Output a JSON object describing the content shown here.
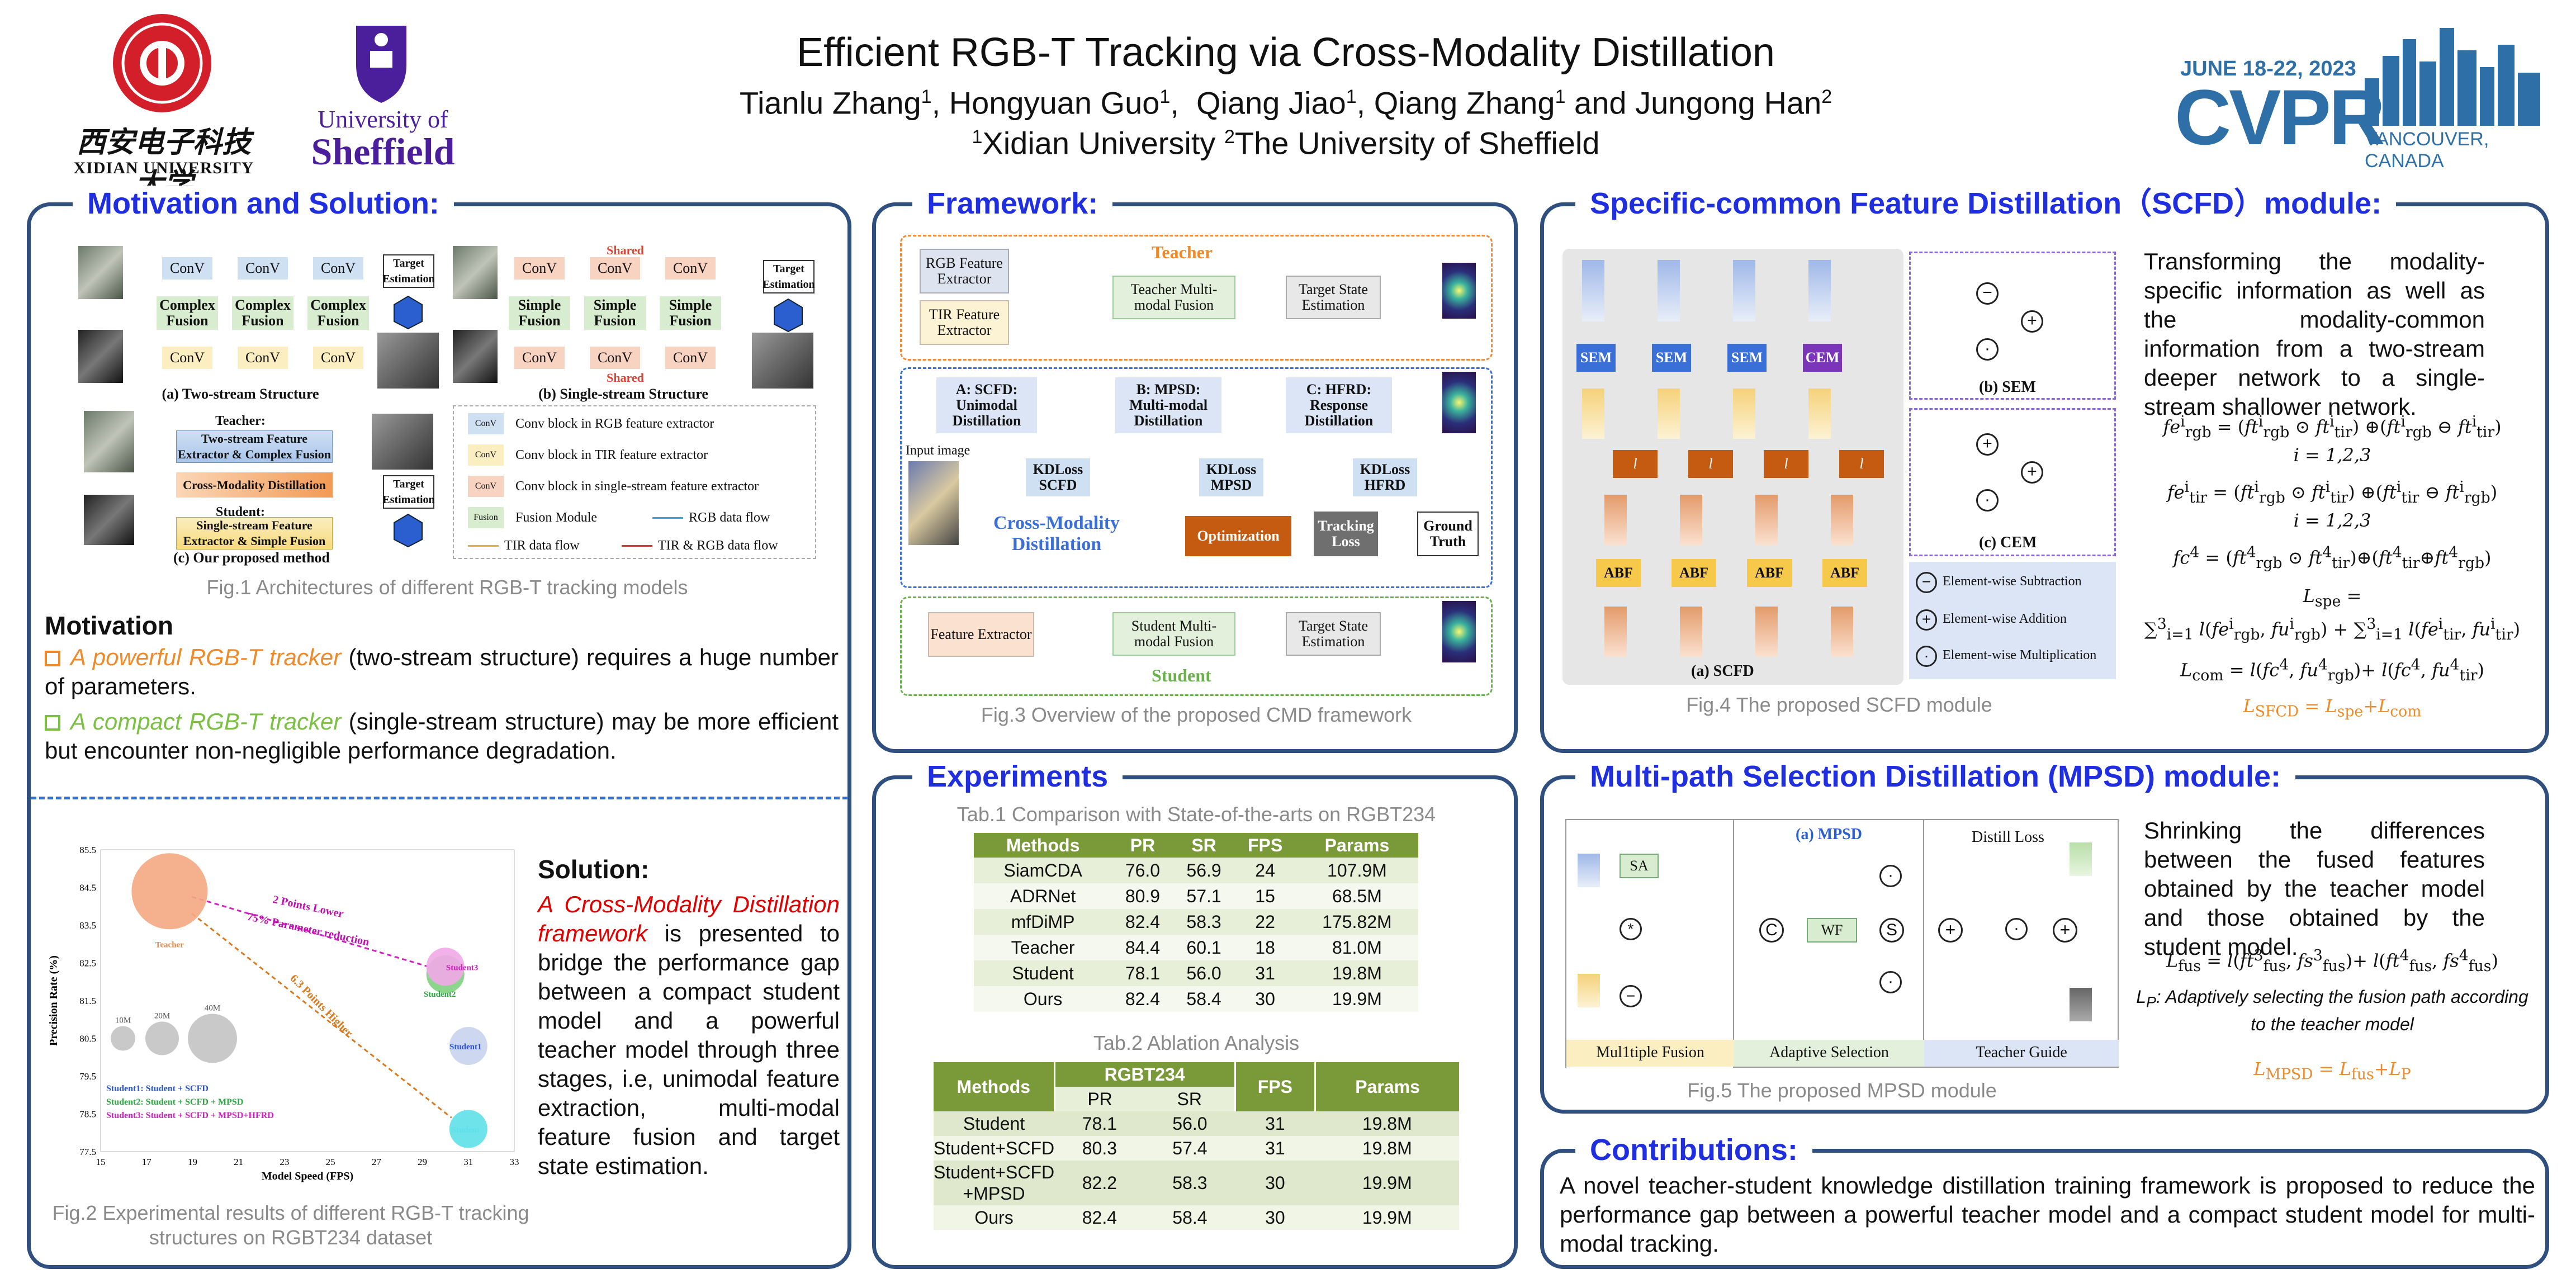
{
  "header": {
    "title": "Efficient RGB-T Tracking via Cross-Modality Distillation",
    "authors_prefix": "Tianlu Zhang",
    "author2": "Hongyuan Guo",
    "author3": "Qiang Jiao",
    "author4": "Qiang Zhang",
    "author5": "Jungong Han",
    "sup1": "1",
    "sup2": "2",
    "and": " and ",
    "aff1": "Xidian University ",
    "aff2": "The University of Sheffield",
    "xidian_cn": "西安电子科技大学",
    "xidian_en": "XIDIAN UNIVERSITY",
    "sheffield1": "University of",
    "sheffield2": "Sheffield",
    "cvpr_date": "JUNE 18-22, 2023",
    "cvpr": "CVPR",
    "cvpr_loc": "VANCOUVER, CANADA"
  },
  "motivation": {
    "title": "Motivation and Solution:",
    "fig1_a": "(a) Two-stream Structure",
    "fig1_b": "(b) Single-stream Structure",
    "fig1_c": "(c) Our proposed method",
    "conv": "ConV",
    "cfusion": "Complex Fusion",
    "sfusion": "Simple Fusion",
    "shared": "Shared",
    "target": "Target Estimation",
    "teacher_lbl": "Teacher:",
    "teacher_box": "Two-stream Feature Extractor & Complex Fusion",
    "cmd_box": "Cross-Modality Distillation",
    "student_lbl": "Student:",
    "student_box": "Single-stream Feature Extractor & Simple Fusion",
    "legend": [
      "Conv block in RGB feature extractor",
      "Conv block in TIR feature extractor",
      "Conv block in single-stream feature extractor",
      "Fusion Module",
      "RGB data flow",
      "TIR data flow",
      "TIR & RGB data flow"
    ],
    "fusion_chip": "Fusion",
    "fig1_caption": "Fig.1 Architectures of different RGB-T tracking models",
    "motivation_head": "Motivation",
    "bullet1_hl": "A powerful RGB-T tracker",
    "bullet1_rest": " (two-stream structure) requires a huge number of parameters.",
    "bullet2_hl": "A compact RGB-T tracker",
    "bullet2_rest": " (single-stream structure) may be more efficient but encounter non-negligible performance degradation.",
    "solution_head": "Solution:",
    "solution_hl": "A Cross-Modality Distillation framework",
    "solution_rest": " is presented to bridge the performance gap between a compact student model and a powerful teacher model through three stages, i.e, unimodal feature extraction, multi-modal feature fusion and target state estimation.",
    "fig2_caption": "Fig.2 Experimental results of different RGB-T tracking structures on RGBT234 dataset"
  },
  "chart_data": {
    "type": "scatter",
    "xlabel": "Model Speed (FPS)",
    "ylabel": "Precision Rate (%)",
    "xlim": [
      15,
      33
    ],
    "ylim": [
      77.5,
      85.5
    ],
    "xticks": [
      15,
      17,
      19,
      21,
      23,
      25,
      27,
      29,
      31,
      33
    ],
    "yticks": [
      77.5,
      78.5,
      79.5,
      80.5,
      81.5,
      82.5,
      83.5,
      84.5,
      85.5
    ],
    "points": [
      {
        "name": "Teacher",
        "x": 18,
        "y": 84.4,
        "params": 81.0,
        "color": "#f4a882"
      },
      {
        "name": "Student",
        "x": 31,
        "y": 78.1,
        "params": 19.8,
        "color": "#5ee0e8"
      },
      {
        "name": "Student1",
        "x": 31,
        "y": 80.3,
        "params": 19.8,
        "color": "#c8d4ee"
      },
      {
        "name": "Student2",
        "x": 30,
        "y": 82.2,
        "params": 19.9,
        "color": "#7fd27f"
      },
      {
        "name": "Student3",
        "x": 30,
        "y": 82.4,
        "params": 19.9,
        "color": "#f2a8e8"
      }
    ],
    "size_legend": [
      "10M",
      "20M",
      "40M"
    ],
    "legend": [
      {
        "text": "Student1: Student + SCFD",
        "color": "#2a55d0"
      },
      {
        "text": "Student2: Student + SCFD + MPSD",
        "color": "#2aa840"
      },
      {
        "text": "Student3: Student + SCFD + MPSD+HFRD",
        "color": "#d020c0"
      }
    ],
    "annotations": [
      "2 Points Lower",
      "75% Parameter reduction",
      "6.3 Points Higher"
    ]
  },
  "framework": {
    "title": "Framework:",
    "teacher": "Teacher",
    "student": "Student",
    "rgb_fe": "RGB Feature Extractor",
    "tir_fe": "TIR Feature Extractor",
    "t_fusion": "Teacher Multi-modal Fusion",
    "t_est": "Target State Estimation",
    "a": "A: SCFD: Unimodal Distillation",
    "b": "B: MPSD: Multi-modal Distillation",
    "c": "C: HFRD: Response Distillation",
    "kd_scfd": "KDLoss SCFD",
    "kd_mpsd": "KDLoss MPSD",
    "kd_hfrd": "KDLoss HFRD",
    "cmd": "Cross-Modality Distillation",
    "opt": "Optimization",
    "track": "Tracking Loss",
    "gt": "Ground Truth",
    "input": "Input image",
    "fe": "Feature Extractor",
    "s_fusion": "Student Multi-modal Fusion",
    "s_est": "Target State Estimation",
    "caption": "Fig.3 Overview of the proposed CMD framework"
  },
  "experiments": {
    "title": "Experiments",
    "tab1_caption": "Tab.1 Comparison with State-of-the-arts on RGBT234",
    "tab1_header": [
      "Methods",
      "PR",
      "SR",
      "FPS",
      "Params"
    ],
    "tab1_rows": [
      [
        "SiamCDA",
        "76.0",
        "56.9",
        "24",
        "107.9M"
      ],
      [
        "ADRNet",
        "80.9",
        "57.1",
        "15",
        "68.5M"
      ],
      [
        "mfDiMP",
        "82.4",
        "58.3",
        "22",
        "175.82M"
      ],
      [
        "Teacher",
        "84.4",
        "60.1",
        "18",
        "81.0M"
      ],
      [
        "Student",
        "78.1",
        "56.0",
        "31",
        "19.8M"
      ],
      [
        "Ours",
        "82.4",
        "58.4",
        "30",
        "19.9M"
      ]
    ],
    "tab2_caption": "Tab.2 Ablation Analysis",
    "tab2_h_methods": "Methods",
    "tab2_h_group": "RGBT234",
    "tab2_h_pr": "PR",
    "tab2_h_sr": "SR",
    "tab2_h_fps": "FPS",
    "tab2_h_params": "Params",
    "tab2_rows": [
      [
        "Student",
        "78.1",
        "56.0",
        "31",
        "19.8M"
      ],
      [
        "Student+SCFD",
        "80.3",
        "57.4",
        "31",
        "19.8M"
      ],
      [
        "Student+SCFD +MPSD",
        "82.2",
        "58.3",
        "30",
        "19.9M"
      ],
      [
        "Ours",
        "82.4",
        "58.4",
        "30",
        "19.9M"
      ]
    ]
  },
  "scfd": {
    "title": "Specific-common Feature Distillation（SCFD）module:",
    "text": "Transforming the modality-specific information as well as the modality-common information from a two-stream deeper network to a single-stream shallower network.",
    "sem": "SEM",
    "cem": "CEM",
    "l": "l",
    "abf": "ABF",
    "a": "(a) SCFD",
    "b": "(b) SEM",
    "c": "(c) CEM",
    "leg_sub": "Element-wise Subtraction",
    "leg_add": "Element-wise Addition",
    "leg_mul": "Element-wise Multiplication",
    "eq_i": "i = 1,2,3",
    "eq_lspe": "L",
    "caption": "Fig.4 The proposed SCFD module"
  },
  "mpsd": {
    "title": "Multi-path Selection Distillation (MPSD) module:",
    "text": "Shrinking the differences between the fused features obtained by the teacher model and those obtained by the student model.",
    "lp_text": ": Adaptively selecting the fusion path according to the teacher model",
    "a": "(a) MPSD",
    "distill": "Distill Loss",
    "sa": "SA",
    "wf": "WF",
    "multiple": "Mul1tiple Fusion",
    "adaptive": "Adaptive Selection",
    "guide": "Teacher Guide",
    "caption": "Fig.5 The proposed MPSD module"
  },
  "contrib": {
    "title": "Contributions:",
    "text": "A novel teacher-student knowledge distillation training framework is proposed to reduce the performance gap between a powerful teacher model and a compact student model for multi-modal tracking."
  },
  "colors": {
    "panel": "#2f4f7f",
    "title": "#1f2fe0",
    "orange": "#ef8a2a",
    "green": "#7ac043",
    "table_head": "#7a9a3a",
    "table_odd": "#e8efd9",
    "table_even": "#f5f8ee"
  }
}
